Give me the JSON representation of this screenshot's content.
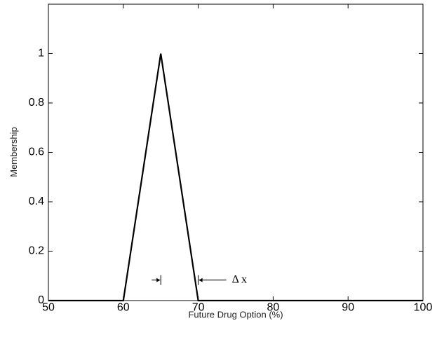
{
  "chart_data": {
    "type": "line",
    "xlabel": "Future Drug Option (%)",
    "ylabel": "Membership",
    "xlim": [
      50,
      100
    ],
    "ylim": [
      0,
      1.2
    ],
    "x_ticks": [
      50,
      60,
      70,
      80,
      90,
      100
    ],
    "y_ticks": [
      0,
      0.2,
      0.4,
      0.6,
      0.8,
      1
    ],
    "x_tick_labels": [
      "50",
      "60",
      "70",
      "80",
      "90",
      "100"
    ],
    "y_tick_labels": [
      "0",
      "0.2",
      "0.4",
      "0.6",
      "0.8",
      "1"
    ],
    "grid": false,
    "series": [
      {
        "x": [
          50,
          60,
          65,
          70,
          100
        ],
        "y": [
          0,
          0,
          1,
          0,
          0
        ]
      }
    ],
    "annotations": [
      {
        "text": "Δ x",
        "type": "interval",
        "x_start": 65,
        "x_end": 70,
        "y": 0.083
      }
    ]
  }
}
